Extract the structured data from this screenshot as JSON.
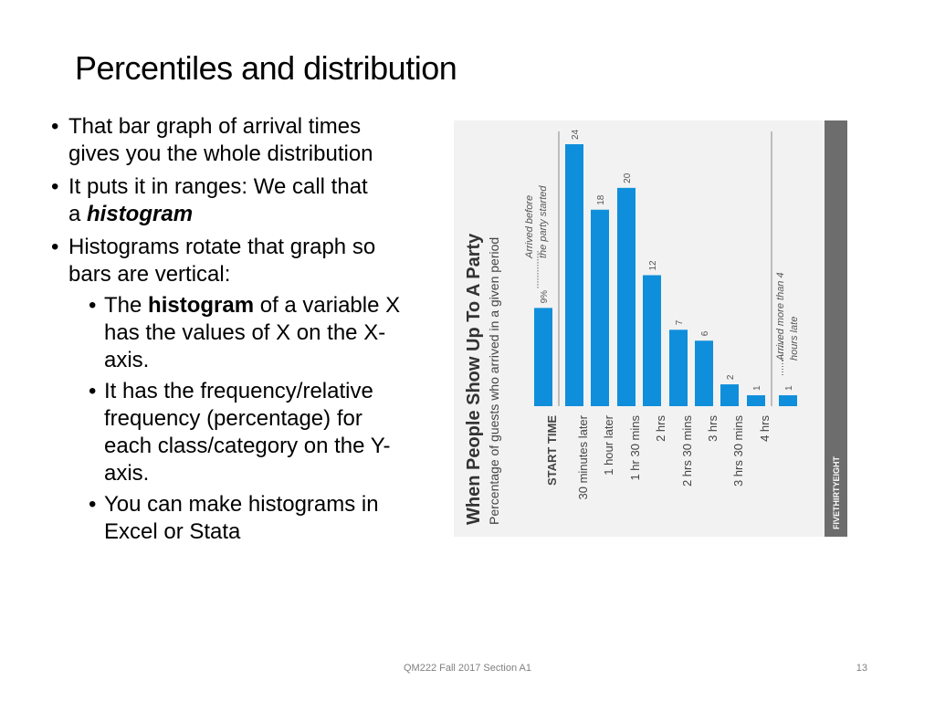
{
  "title": "Percentiles and distribution",
  "bullets": [
    {
      "level": 1,
      "runs": [
        {
          "text": "That bar graph of arrival times gives you the whole distribution",
          "style": "normal"
        }
      ]
    },
    {
      "level": 1,
      "runs": [
        {
          "text": "It puts it in ranges: We call that a ",
          "style": "normal"
        },
        {
          "text": "histogram",
          "style": "bold-italic"
        }
      ]
    },
    {
      "level": 1,
      "runs": [
        {
          "text": "Histograms  rotate that graph so bars are vertical:",
          "style": "normal"
        }
      ]
    },
    {
      "level": 2,
      "runs": [
        {
          "text": "The ",
          "style": "normal"
        },
        {
          "text": "histogram",
          "style": "bold"
        },
        {
          "text": " of a variable X has the values of X on the X-axis.",
          "style": "normal"
        }
      ]
    },
    {
      "level": 2,
      "runs": [
        {
          "text": "It has the frequency/relative frequency (percentage) for each class/category on the Y-axis.",
          "style": "normal"
        }
      ]
    },
    {
      "level": 2,
      "runs": [
        {
          "text": "You can make histograms in Excel or Stata",
          "style": "normal"
        }
      ]
    }
  ],
  "figure": {
    "type": "bar",
    "title": "When People Show Up To A Party",
    "subtitle": "Percentage of guests who arrived in a given period",
    "categories": [
      "START TIME",
      "30 minutes later",
      "1 hour later",
      "1 hr 30 mins",
      "2 hrs",
      "2 hrs 30 mins",
      "3 hrs",
      "3 hrs 30 mins",
      "4 hrs",
      null
    ],
    "values": [
      9,
      24,
      18,
      20,
      12,
      7,
      6,
      2,
      1,
      1
    ],
    "value_labels": [
      "9%",
      "24",
      "18",
      "20",
      "12",
      "7",
      "6",
      "2",
      "1",
      "1"
    ],
    "color": "#0f8fdb",
    "annotations": [
      [
        "Arrived before",
        "the party started"
      ],
      [
        "Arrived more than 4",
        "hours late"
      ]
    ],
    "brand": "FIVETHIRTYEIGHT"
  },
  "footer": "QM222 Fall 2017 Section A1",
  "page_number": "13"
}
